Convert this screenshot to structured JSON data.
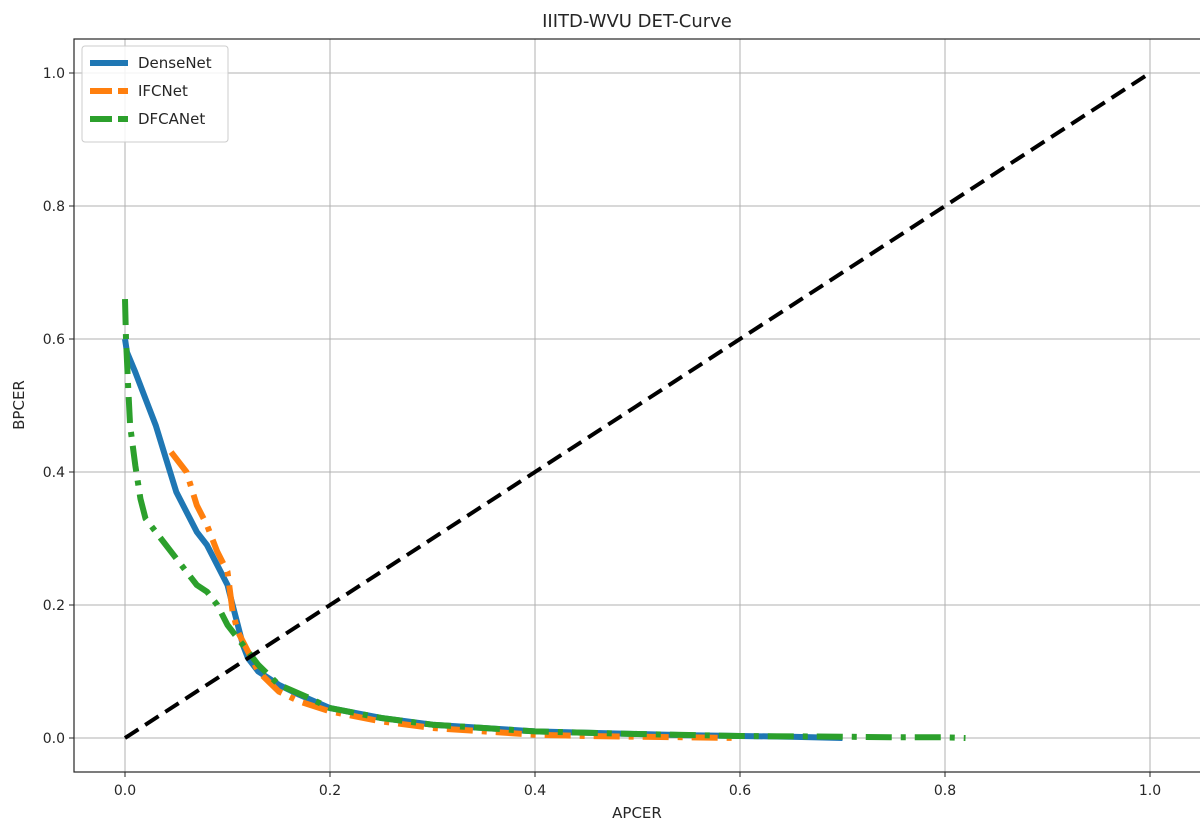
{
  "chart_data": {
    "type": "line",
    "title": "IIITD-WVU DET-Curve",
    "xlabel": "APCER",
    "ylabel": "BPCER",
    "xlim": [
      -0.05,
      1.05
    ],
    "ylim": [
      -0.05,
      1.05
    ],
    "xticks": [
      "0.0",
      "0.2",
      "0.4",
      "0.6",
      "0.8",
      "1.0"
    ],
    "yticks": [
      "0.0",
      "0.2",
      "0.4",
      "0.6",
      "0.8",
      "1.0"
    ],
    "grid": true,
    "legend_position": "top-left",
    "series": [
      {
        "name": "DenseNet",
        "color": "#1f77b4",
        "style": "solid",
        "x": [
          0.0,
          0.002,
          0.01,
          0.02,
          0.03,
          0.04,
          0.05,
          0.06,
          0.07,
          0.08,
          0.09,
          0.1,
          0.105,
          0.11,
          0.115,
          0.12,
          0.13,
          0.15,
          0.17,
          0.2,
          0.25,
          0.3,
          0.35,
          0.4,
          0.45,
          0.5,
          0.55,
          0.6,
          0.65,
          0.7
        ],
        "y": [
          0.6,
          0.58,
          0.55,
          0.51,
          0.47,
          0.42,
          0.37,
          0.34,
          0.31,
          0.29,
          0.26,
          0.23,
          0.2,
          0.17,
          0.14,
          0.12,
          0.1,
          0.08,
          0.065,
          0.045,
          0.03,
          0.02,
          0.015,
          0.01,
          0.008,
          0.006,
          0.004,
          0.003,
          0.002,
          0.0
        ]
      },
      {
        "name": "IFCNet",
        "color": "#ff7f0e",
        "style": "dashdot",
        "x": [
          0.045,
          0.06,
          0.07,
          0.08,
          0.09,
          0.1,
          0.105,
          0.11,
          0.12,
          0.13,
          0.15,
          0.17,
          0.2,
          0.25,
          0.3,
          0.35,
          0.4,
          0.45,
          0.5,
          0.55,
          0.6
        ],
        "y": [
          0.43,
          0.4,
          0.35,
          0.32,
          0.28,
          0.25,
          0.19,
          0.16,
          0.13,
          0.1,
          0.07,
          0.055,
          0.04,
          0.025,
          0.015,
          0.01,
          0.005,
          0.003,
          0.002,
          0.001,
          0.0
        ]
      },
      {
        "name": "DFCANet",
        "color": "#2ca02c",
        "style": "dashdot",
        "x": [
          0.0,
          0.001,
          0.003,
          0.005,
          0.01,
          0.015,
          0.02,
          0.03,
          0.05,
          0.07,
          0.08,
          0.09,
          0.1,
          0.11,
          0.12,
          0.13,
          0.15,
          0.18,
          0.2,
          0.25,
          0.3,
          0.35,
          0.4,
          0.5,
          0.6,
          0.7,
          0.75,
          0.8,
          0.82
        ],
        "y": [
          0.66,
          0.6,
          0.53,
          0.47,
          0.41,
          0.36,
          0.33,
          0.31,
          0.27,
          0.23,
          0.22,
          0.2,
          0.17,
          0.15,
          0.13,
          0.11,
          0.08,
          0.06,
          0.045,
          0.03,
          0.02,
          0.015,
          0.01,
          0.006,
          0.003,
          0.002,
          0.001,
          0.001,
          0.0
        ]
      },
      {
        "name": "",
        "color": "#000000",
        "style": "dashed",
        "x": [
          0.0,
          1.0
        ],
        "y": [
          0.0,
          1.0
        ]
      }
    ]
  }
}
